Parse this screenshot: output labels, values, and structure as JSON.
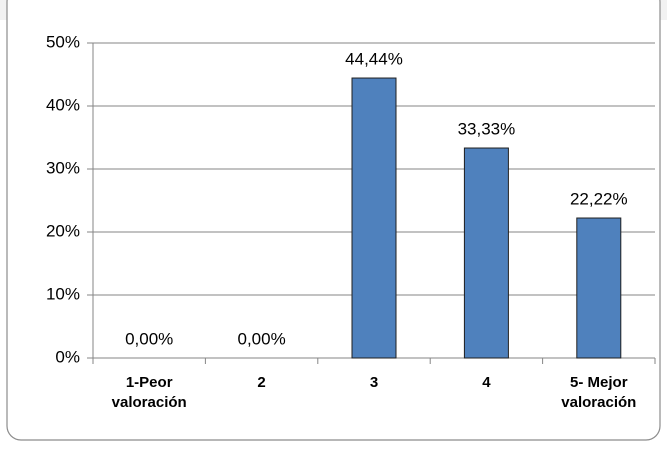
{
  "chart_data": {
    "type": "bar",
    "categories": [
      "1-Peor valoración",
      "2",
      "3",
      "4",
      "5- Mejor valoración"
    ],
    "values": [
      0,
      0,
      44.44,
      33.33,
      22.22
    ],
    "value_labels": [
      "0,00%",
      "0,00%",
      "44,44%",
      "33,33%",
      "22,22%"
    ],
    "color": "#4f81bd",
    "ylim": [
      0,
      50
    ],
    "yticks": [
      {
        "value": 0,
        "label": "0%"
      },
      {
        "value": 10,
        "label": "10%"
      },
      {
        "value": 20,
        "label": "20%"
      },
      {
        "value": 30,
        "label": "30%"
      },
      {
        "value": 40,
        "label": "40%"
      },
      {
        "value": 50,
        "label": "50%"
      }
    ],
    "grid": true
  }
}
